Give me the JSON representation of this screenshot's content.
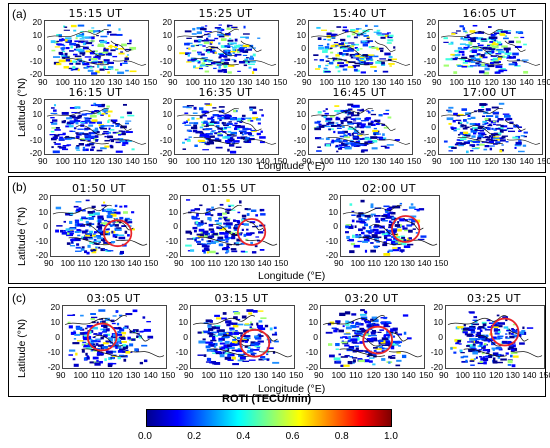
{
  "panels": [
    {
      "label": "(a)",
      "times": [
        "15:15 UT",
        "15:25 UT",
        "15:40 UT",
        "16:05 UT",
        "16:15 UT",
        "16:35 UT",
        "16:45 UT",
        "17:00 UT"
      ]
    },
    {
      "label": "(b)",
      "times": [
        "01:50 UT",
        "01:55 UT",
        "02:00 UT"
      ]
    },
    {
      "label": "(c)",
      "times": [
        "03:05 UT",
        "03:15 UT",
        "03:20 UT",
        "03:25 UT"
      ]
    }
  ],
  "axes": {
    "ylabel": "Latitude (°N)",
    "xlabel": "Longitude (°E)",
    "yticks": [
      "20",
      "10",
      "0",
      "-10",
      "-20"
    ],
    "xticks_a": [
      "90",
      "100",
      "110",
      "120",
      "130",
      "140",
      "150"
    ],
    "xticks_bc": [
      "90",
      "100",
      "110",
      "120",
      "130",
      "140",
      "150"
    ]
  },
  "colorbar": {
    "title": "ROTI (TECU/min)",
    "ticks": [
      "0.0",
      "0.2",
      "0.4",
      "0.6",
      "0.8",
      "1.0"
    ],
    "range": [
      0,
      1
    ],
    "colors": [
      "#00008f",
      "#0000ff",
      "#0080ff",
      "#00ffff",
      "#80ff80",
      "#ffff00",
      "#ff8000",
      "#ff0000",
      "#800000"
    ]
  },
  "highlight_color": "#e8262b"
}
